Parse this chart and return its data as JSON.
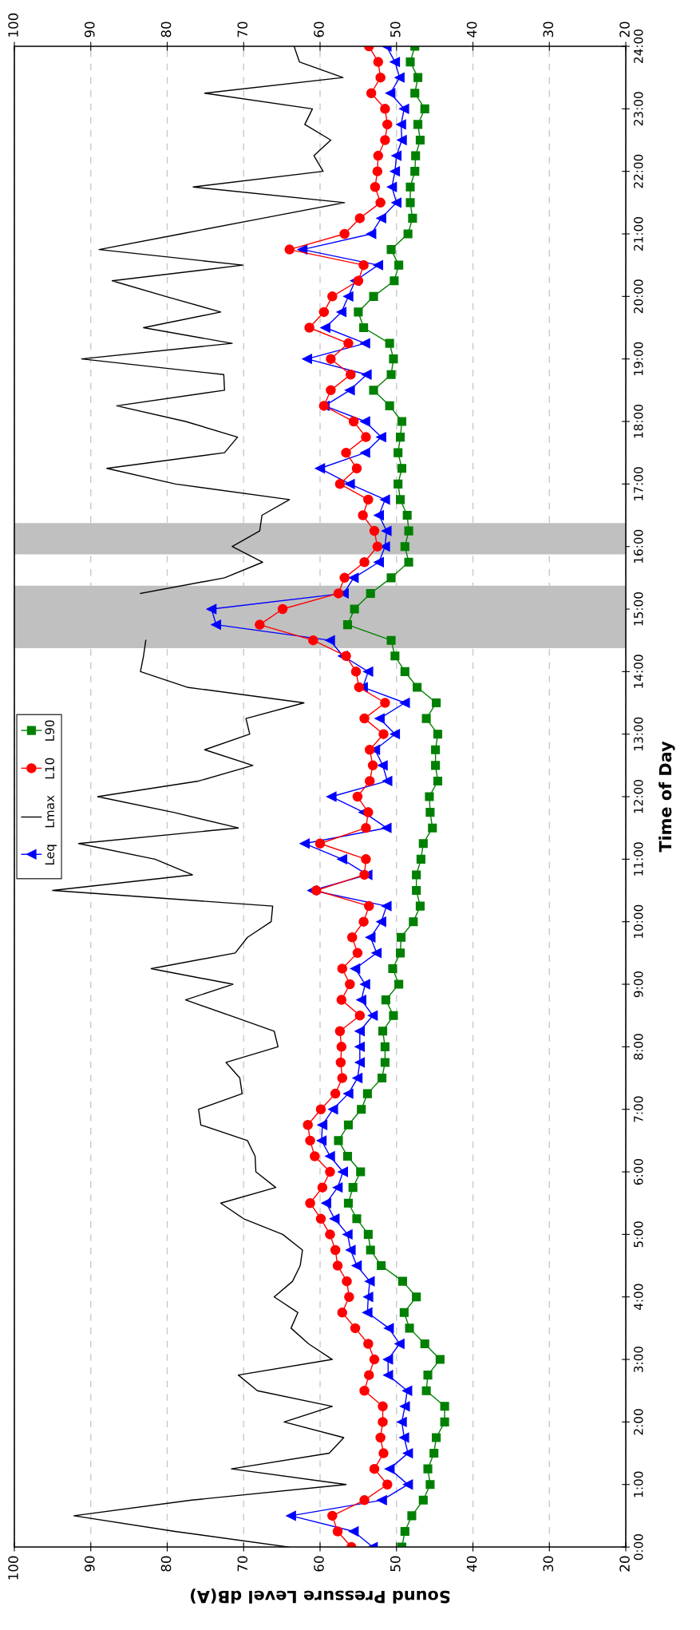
{
  "chart_data": {
    "type": "line",
    "orientation": "horizontal",
    "xlabel": "Sound Pressure Level dB(A)",
    "ylabel": "Time of Day",
    "x": [
      0,
      0.25,
      0.5,
      0.75,
      1,
      1.25,
      1.5,
      1.75,
      2,
      2.25,
      2.5,
      2.75,
      3,
      3.25,
      3.5,
      3.75,
      4,
      4.25,
      4.5,
      4.75,
      5,
      5.25,
      5.5,
      5.75,
      6,
      6.25,
      6.5,
      6.75,
      7,
      7.25,
      7.5,
      7.75,
      8,
      8.25,
      8.5,
      8.75,
      9,
      9.25,
      9.5,
      9.75,
      10,
      10.25,
      10.5,
      10.75,
      11,
      11.25,
      11.5,
      11.75,
      12,
      12.25,
      12.5,
      12.75,
      13,
      13.25,
      13.5,
      13.75,
      14,
      14.25,
      14.5,
      14.75,
      15,
      15.25,
      15.5,
      15.75,
      16,
      16.25,
      16.5,
      16.75,
      17,
      17.25,
      17.5,
      17.75,
      18,
      18.25,
      18.5,
      18.75,
      19,
      19.25,
      19.5,
      19.75,
      20,
      20.25,
      20.5,
      20.75,
      21,
      21.25,
      21.5,
      21.75,
      22,
      22.25,
      22.5,
      22.75,
      23,
      23.25,
      23.5,
      23.75,
      24
    ],
    "ylim": [
      0,
      24
    ],
    "yticks": [
      {
        "value": 0,
        "label": "0:00"
      },
      {
        "value": 1,
        "label": "1:00"
      },
      {
        "value": 2,
        "label": "2:00"
      },
      {
        "value": 3,
        "label": "3:00"
      },
      {
        "value": 4,
        "label": "4:00"
      },
      {
        "value": 5,
        "label": "5:00"
      },
      {
        "value": 6,
        "label": "6:00"
      },
      {
        "value": 7,
        "label": "7:00"
      },
      {
        "value": 8,
        "label": "8:00"
      },
      {
        "value": 9,
        "label": "9:00"
      },
      {
        "value": 10,
        "label": "10:00"
      },
      {
        "value": 11,
        "label": "11:00"
      },
      {
        "value": 12,
        "label": "12:00"
      },
      {
        "value": 13,
        "label": "13:00"
      },
      {
        "value": 14,
        "label": "14:00"
      },
      {
        "value": 15,
        "label": "15:00"
      },
      {
        "value": 16,
        "label": "16:00"
      },
      {
        "value": 17,
        "label": "17:00"
      },
      {
        "value": 18,
        "label": "18:00"
      },
      {
        "value": 19,
        "label": "19:00"
      },
      {
        "value": 20,
        "label": "20:00"
      },
      {
        "value": 21,
        "label": "21:00"
      },
      {
        "value": 22,
        "label": "22:00"
      },
      {
        "value": 23,
        "label": "23:00"
      },
      {
        "value": 24,
        "label": "24:00"
      }
    ],
    "xlim": [
      100,
      20
    ],
    "xticks": [
      20,
      30,
      40,
      50,
      60,
      70,
      80,
      90,
      100
    ],
    "x2lim": [
      100,
      20
    ],
    "x2ticks": [
      20,
      30,
      40,
      50,
      60,
      70,
      80,
      90,
      100
    ],
    "grid": "x",
    "legend": "left",
    "line_style": "solid",
    "bands": [
      {
        "axis": "y",
        "from": 14.375,
        "to": 15.375,
        "color": "#c0c0c0"
      },
      {
        "axis": "y",
        "from": 15.875,
        "to": 16.375,
        "color": "#c0c0c0"
      }
    ],
    "series": [
      {
        "name": "Leq",
        "color": "#0000ff",
        "marker": "triangle",
        "values": [
          53.1,
          55.6,
          63.8,
          51.9,
          48.5,
          50.9,
          48.5,
          49.0,
          49.3,
          48.9,
          48.6,
          51.1,
          51.1,
          49.6,
          51.0,
          53.8,
          53.7,
          53.5,
          55.2,
          56.0,
          56.4,
          58.1,
          59.2,
          57.7,
          57.0,
          58.7,
          59.8,
          59.7,
          58.3,
          56.3,
          55.1,
          54.8,
          54.8,
          54.8,
          53.1,
          54.6,
          54.1,
          55.4,
          52.6,
          53.4,
          52.0,
          51.3,
          61.0,
          53.8,
          57.1,
          62.0,
          51.3,
          54.3,
          58.5,
          51.2,
          51.8,
          52.8,
          50.2,
          52.2,
          48.9,
          54.4,
          53.7,
          57.0,
          58.7,
          73.6,
          74.2,
          56.9,
          55.6,
          52.3,
          51.5,
          51.3,
          52.3,
          51.5,
          56.1,
          60.0,
          54.1,
          52.0,
          54.1,
          59.4,
          56.1,
          53.9,
          61.7,
          54.1,
          59.3,
          57.2,
          56.3,
          55.4,
          52.4,
          62.3,
          53.3,
          52.0,
          50.0,
          50.6,
          50.2,
          50.0,
          49.3,
          49.4,
          49.0,
          50.8,
          49.6,
          50.2,
          51.3
        ]
      },
      {
        "name": "Lmax",
        "color": "#000000",
        "marker": "none",
        "values": [
          64.1,
          79.0,
          92.2,
          76.8,
          56.6,
          71.6,
          58.8,
          56.9,
          64.7,
          58.4,
          68.2,
          70.7,
          58.4,
          61.5,
          63.8,
          62.9,
          66.0,
          63.6,
          62.6,
          62.3,
          64.9,
          70.0,
          73.0,
          65.8,
          68.4,
          68.5,
          69.5,
          75.6,
          75.9,
          70.2,
          70.5,
          72.3,
          65.5,
          66.0,
          71.8,
          77.6,
          71.4,
          82.1,
          71.1,
          69.5,
          66.4,
          66.2,
          95.0,
          76.7,
          81.6,
          91.6,
          70.7,
          79.2,
          89.1,
          75.9,
          68.8,
          75.1,
          69.2,
          69.7,
          62.1,
          77.4,
          83.5,
          83.1,
          82.8,
          null,
          null,
          83.5,
          72.5,
          67.5,
          71.5,
          67.9,
          67.6,
          64.0,
          78.9,
          87.9,
          72.5,
          70.8,
          77.6,
          86.6,
          72.5,
          72.6,
          91.2,
          71.5,
          83.1,
          73.0,
          80.2,
          87.2,
          70.1,
          88.9,
          78.2,
          67.5,
          56.8,
          76.6,
          59.6,
          60.8,
          58.6,
          62.0,
          61.0,
          75.1,
          57.0,
          62.7,
          63.4
        ]
      },
      {
        "name": "L10",
        "color": "#ff0000",
        "marker": "circle",
        "values": [
          55.9,
          57.7,
          58.4,
          54.2,
          51.2,
          52.9,
          51.7,
          52.1,
          51.8,
          51.8,
          54.2,
          53.6,
          52.9,
          53.7,
          55.4,
          57.1,
          56.2,
          56.5,
          57.7,
          58.0,
          58.7,
          59.9,
          61.3,
          59.7,
          58.7,
          60.7,
          61.3,
          61.6,
          59.9,
          58.0,
          57.1,
          57.3,
          57.2,
          57.4,
          54.8,
          57.2,
          56.1,
          57.1,
          55.1,
          55.8,
          54.3,
          53.6,
          60.5,
          54.2,
          54.0,
          60.0,
          54.0,
          53.7,
          55.1,
          53.5,
          53.1,
          53.5,
          51.7,
          54.2,
          51.5,
          54.9,
          55.3,
          56.6,
          60.9,
          67.9,
          64.9,
          57.6,
          56.8,
          54.2,
          52.5,
          52.9,
          54.4,
          53.7,
          57.4,
          55.2,
          56.6,
          54.0,
          55.6,
          59.5,
          58.6,
          56.0,
          58.6,
          56.3,
          61.4,
          59.5,
          58.4,
          55.0,
          54.3,
          64.0,
          56.8,
          54.8,
          52.1,
          52.8,
          52.5,
          52.4,
          51.5,
          51.2,
          51.5,
          53.3,
          52.1,
          52.4,
          53.6
        ]
      },
      {
        "name": "L90",
        "color": "#008000",
        "marker": "square",
        "values": [
          49.3,
          48.9,
          48.0,
          46.5,
          45.6,
          45.9,
          45.1,
          44.8,
          43.7,
          43.7,
          46.1,
          45.9,
          44.3,
          46.3,
          48.3,
          49.0,
          47.4,
          49.2,
          52.0,
          53.4,
          53.7,
          55.2,
          56.3,
          55.7,
          54.7,
          56.4,
          57.6,
          56.3,
          54.6,
          53.8,
          51.9,
          51.5,
          51.5,
          51.8,
          50.4,
          51.4,
          49.7,
          50.5,
          49.5,
          49.4,
          47.8,
          46.9,
          47.4,
          47.4,
          46.8,
          46.5,
          45.3,
          45.6,
          45.7,
          44.6,
          44.9,
          44.9,
          44.6,
          46.1,
          44.8,
          47.3,
          48.9,
          50.2,
          50.7,
          56.4,
          55.5,
          53.4,
          50.7,
          48.4,
          48.9,
          48.4,
          48.6,
          49.5,
          49.8,
          49.3,
          49.8,
          49.5,
          49.3,
          50.9,
          53.0,
          50.7,
          50.4,
          50.9,
          54.3,
          55.0,
          53.0,
          50.3,
          49.7,
          50.7,
          48.5,
          47.9,
          48.2,
          48.2,
          47.6,
          47.5,
          46.9,
          47.2,
          46.3,
          47.6,
          47.2,
          48.2,
          47.6
        ]
      }
    ]
  }
}
